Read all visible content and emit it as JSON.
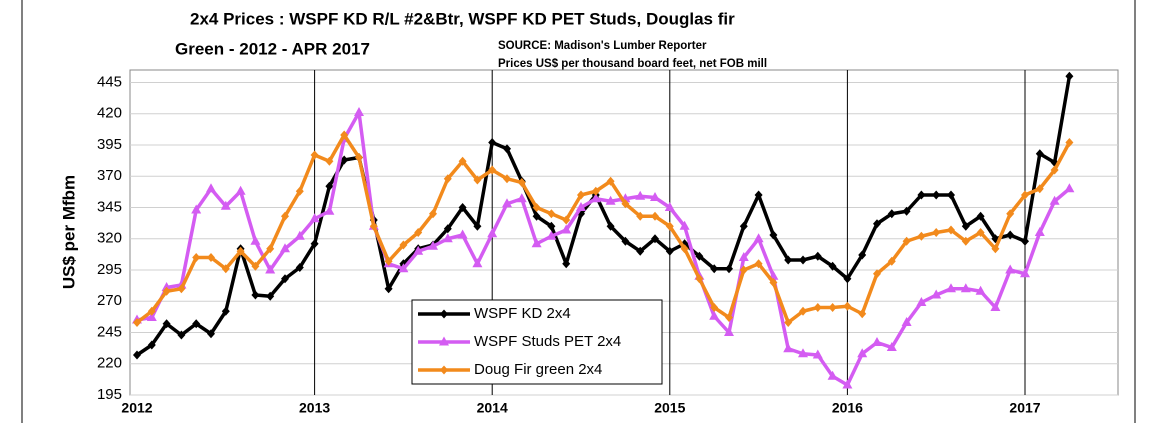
{
  "chart_data": {
    "type": "line",
    "title": [
      "2x4 Prices : WSPF KD R/L #2&Btr, WSPF KD PET Studs, Douglas fir",
      "Green - 2012 - APR 2017"
    ],
    "annotations": [
      "SOURCE: Madison's Lumber Reporter",
      "Prices US$ per thousand board feet, net FOB mill"
    ],
    "y_label": "US$ per Mfbm",
    "categories": [
      "2012",
      null,
      null,
      null,
      null,
      null,
      null,
      null,
      null,
      null,
      null,
      null,
      "2013",
      null,
      null,
      null,
      null,
      null,
      null,
      null,
      null,
      null,
      null,
      null,
      "2014",
      null,
      null,
      null,
      null,
      null,
      null,
      null,
      null,
      null,
      null,
      null,
      "2015",
      null,
      null,
      null,
      null,
      null,
      null,
      null,
      null,
      null,
      null,
      null,
      "2016",
      null,
      null,
      null,
      null,
      null,
      null,
      null,
      null,
      null,
      null,
      null,
      "2017",
      null,
      null,
      null
    ],
    "series": [
      {
        "name": "WSPF KD 2x4",
        "color": "#000000",
        "marker": "diamond",
        "values": [
          227,
          235,
          252,
          243,
          252,
          244,
          262,
          312,
          275,
          274,
          288,
          297,
          316,
          362,
          383,
          385,
          335,
          280,
          300,
          312,
          315,
          328,
          345,
          330,
          397,
          392,
          366,
          338,
          330,
          300,
          340,
          355,
          330,
          318,
          310,
          320,
          310,
          316,
          306,
          296,
          296,
          330,
          355,
          323,
          303,
          303,
          306,
          298,
          288,
          307,
          332,
          340,
          342,
          355,
          355,
          355,
          330,
          338,
          320,
          323,
          318,
          388,
          381,
          450
        ]
      },
      {
        "name": "WSPF Studs PET 2x4",
        "color": "#d45cf2",
        "marker": "triangle",
        "values": [
          255,
          257,
          281,
          283,
          343,
          360,
          346,
          358,
          318,
          295,
          312,
          322,
          336,
          342,
          400,
          421,
          330,
          300,
          296,
          310,
          314,
          320,
          323,
          300,
          324,
          348,
          352,
          316,
          322,
          327,
          345,
          352,
          350,
          352,
          354,
          353,
          345,
          330,
          290,
          258,
          245,
          305,
          320,
          290,
          232,
          228,
          227,
          210,
          203,
          228,
          237,
          233,
          253,
          269,
          275,
          280,
          280,
          278,
          265,
          295,
          292,
          325,
          350,
          360
        ]
      },
      {
        "name": "Doug Fir green 2x4",
        "color": "#f28a1c",
        "marker": "diamond",
        "values": [
          253,
          262,
          278,
          280,
          305,
          305,
          296,
          310,
          298,
          312,
          338,
          358,
          387,
          382,
          403,
          385,
          330,
          302,
          315,
          325,
          340,
          368,
          382,
          367,
          375,
          368,
          365,
          345,
          340,
          335,
          355,
          358,
          366,
          348,
          338,
          338,
          330,
          312,
          288,
          265,
          257,
          295,
          300,
          285,
          253,
          262,
          265,
          265,
          266,
          260,
          292,
          302,
          318,
          322,
          325,
          327,
          318,
          325,
          312,
          340,
          355,
          360,
          375,
          397
        ]
      }
    ],
    "ylim": [
      195,
      455
    ],
    "yticks": [
      195,
      220,
      245,
      270,
      295,
      320,
      345,
      370,
      395,
      420,
      445
    ],
    "grid": true
  }
}
